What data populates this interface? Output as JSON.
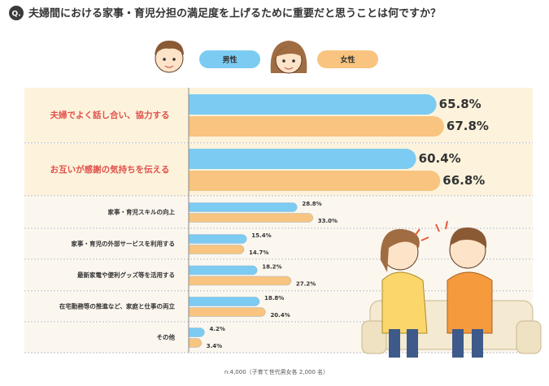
{
  "chart_data": {
    "type": "bar",
    "orientation": "horizontal",
    "badge": "Q.",
    "title": "夫婦間における家事・育児分担の満足度を上げるために重要だと思うことは何ですか？",
    "categories": [
      "夫婦でよく話し合い、協力する",
      "お互いが感謝の気持ちを伝える",
      "家事・育児スキルの向上",
      "家事・育児の外部サービスを利用する",
      "最新家電や便利グッズ等を活用する",
      "在宅勤務等の推進など、家庭と仕事の両立",
      "その他"
    ],
    "series": [
      {
        "name": "男性",
        "color": "#7ccbf2",
        "values": [
          65.8,
          60.4,
          28.8,
          15.4,
          18.2,
          18.8,
          4.2
        ],
        "value_labels": [
          "65.8%",
          "60.4%",
          "28.8%",
          "15.4%",
          "18.2%",
          "18.8%",
          "4.2%"
        ]
      },
      {
        "name": "女性",
        "color": "#f8c47f",
        "values": [
          67.8,
          66.8,
          33.0,
          14.7,
          27.2,
          20.4,
          3.4
        ],
        "value_labels": [
          "67.8%",
          "66.8%",
          "33.0%",
          "14.7%",
          "27.2%",
          "20.4%",
          "3.4%"
        ]
      }
    ],
    "note": "n:4,000（子育て世代男女各 2,000 名）"
  }
}
